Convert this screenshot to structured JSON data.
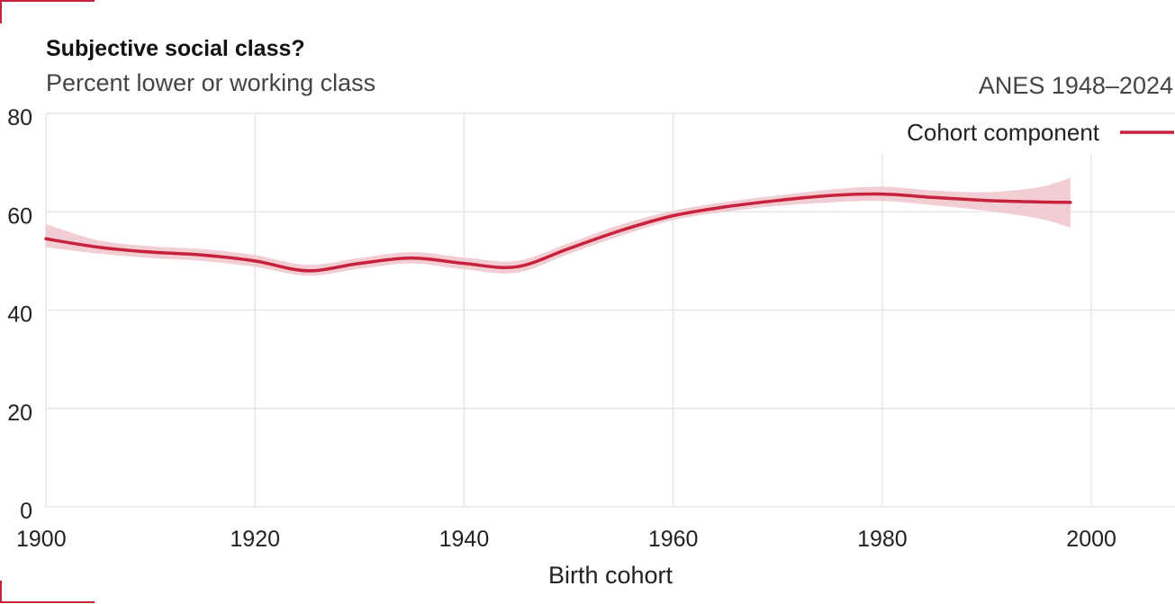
{
  "chart_data": {
    "type": "line",
    "title": "Subjective social class?",
    "subtitle": "Percent lower or working class",
    "source_note": "ANES 1948–2024",
    "xlabel": "Birth cohort",
    "ylabel": "",
    "xlim": [
      1900,
      2008
    ],
    "ylim": [
      0,
      80
    ],
    "x_ticks": [
      1900,
      1920,
      1940,
      1960,
      1980,
      2000
    ],
    "y_ticks": [
      0,
      20,
      40,
      60,
      80
    ],
    "grid": true,
    "legend_position": "top-right",
    "colors": {
      "line": "#c8213d",
      "band": "#f0c4cb",
      "grid": "#e2e2e2",
      "corner_marks": "#c8213d"
    },
    "series": [
      {
        "name": "Cohort component",
        "x": [
          1900,
          1905,
          1910,
          1915,
          1920,
          1925,
          1930,
          1935,
          1940,
          1945,
          1950,
          1955,
          1960,
          1965,
          1970,
          1975,
          1980,
          1985,
          1990,
          1995,
          1998
        ],
        "values": [
          54.5,
          52.8,
          51.8,
          51.2,
          50.0,
          48.0,
          49.5,
          50.6,
          49.5,
          48.8,
          52.5,
          56.2,
          59.2,
          61.0,
          62.3,
          63.3,
          63.6,
          62.9,
          62.3,
          62.0,
          61.9
        ],
        "lower": [
          52.8,
          51.5,
          50.6,
          50.0,
          48.8,
          47.0,
          48.4,
          49.5,
          48.3,
          47.6,
          51.4,
          55.1,
          58.3,
          60.0,
          61.2,
          61.9,
          62.2,
          61.3,
          60.2,
          58.6,
          56.8
        ],
        "upper": [
          57.5,
          54.2,
          53.0,
          52.4,
          51.2,
          49.2,
          50.6,
          51.8,
          50.7,
          50.0,
          53.6,
          57.4,
          60.2,
          62.0,
          63.3,
          64.5,
          65.1,
          64.3,
          64.0,
          65.0,
          66.9
        ]
      }
    ]
  }
}
